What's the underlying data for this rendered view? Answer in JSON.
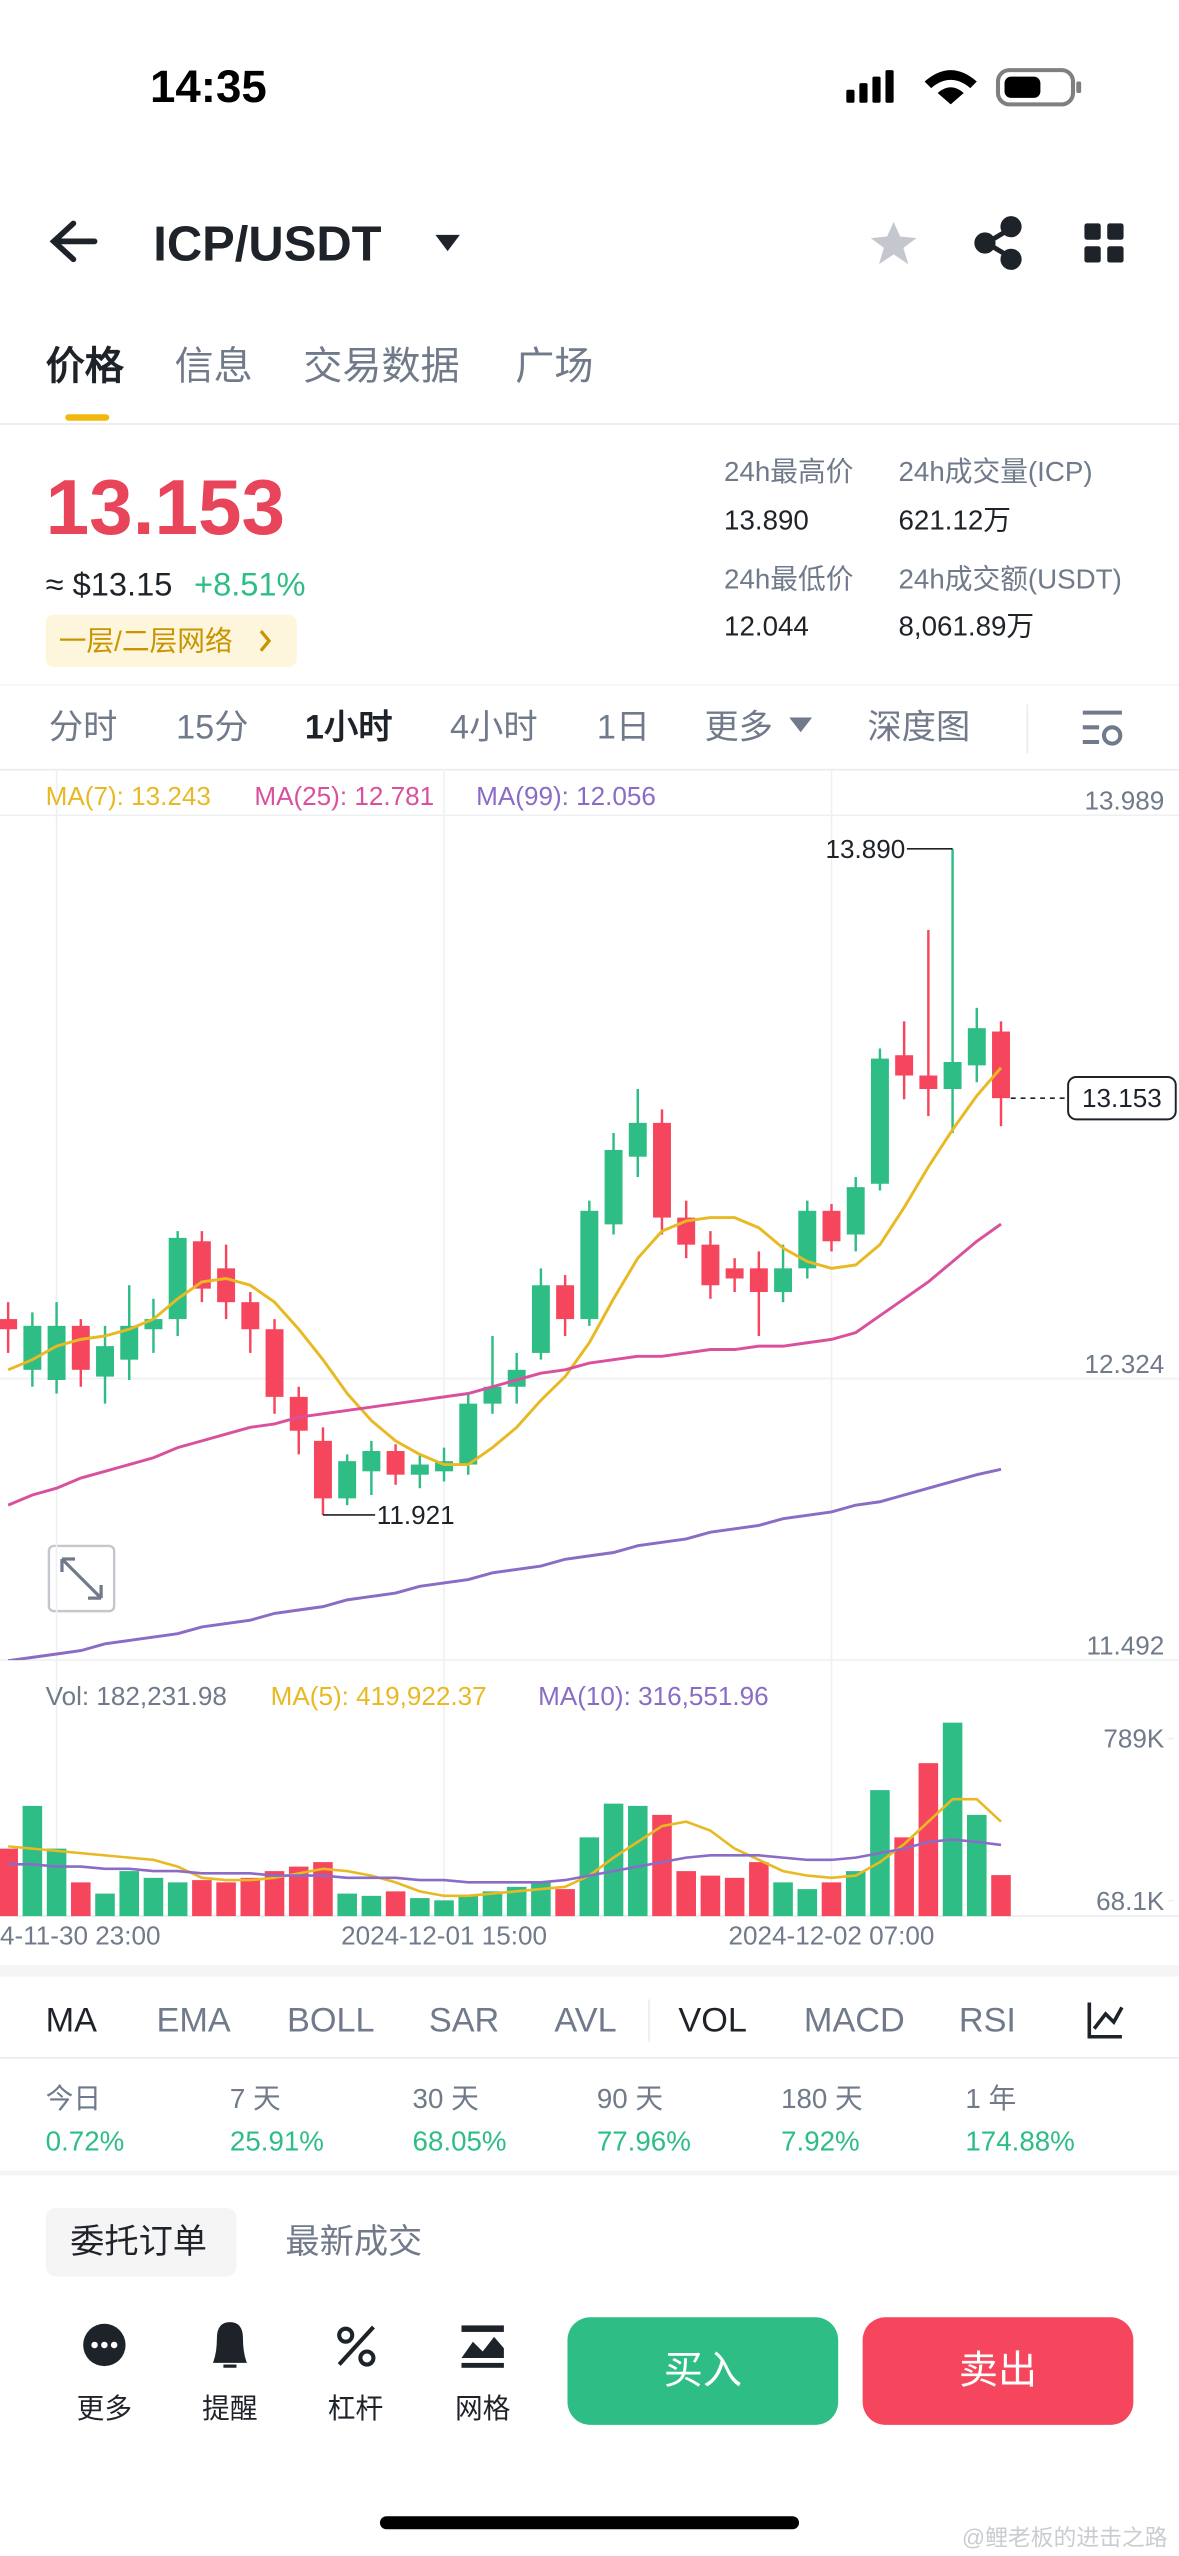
{
  "status_bar": {
    "time": "14:35"
  },
  "header": {
    "pair": "ICP/USDT"
  },
  "tabs": [
    "价格",
    "信息",
    "交易数据",
    "广场"
  ],
  "price": {
    "last": "13.153",
    "usd": "≈ $13.15",
    "change": "+8.51%",
    "network": "一层/二层网络"
  },
  "stats": [
    {
      "label": "24h最高价",
      "value": "13.890"
    },
    {
      "label": "24h成交量(ICP)",
      "value": "621.12万"
    },
    {
      "label": "24h最低价",
      "value": "12.044"
    },
    {
      "label": "24h成交额(USDT)",
      "value": "8,061.89万"
    }
  ],
  "intervals": [
    "分时",
    "15分",
    "1小时",
    "4小时",
    "1日",
    "更多",
    "深度图"
  ],
  "chart_data": [
    {
      "type": "candlestick",
      "up_color": "#2ebd85",
      "down_color": "#f6465d",
      "high_label": "13.890",
      "low_label": "11.921",
      "ylim": [
        11.492,
        13.989
      ],
      "yticks": [
        13.989,
        12.324,
        11.492
      ],
      "grid": true,
      "open": [
        12.5,
        12.35,
        12.32,
        12.48,
        12.33,
        12.38,
        12.47,
        12.5,
        12.73,
        12.65,
        12.55,
        12.47,
        12.27,
        12.14,
        11.97,
        12.05,
        12.11,
        12.04,
        12.05,
        12.07,
        12.25,
        12.3,
        12.4,
        12.6,
        12.5,
        12.78,
        12.98,
        13.08,
        12.8,
        12.72,
        12.65,
        12.65,
        12.58,
        12.65,
        12.82,
        12.75,
        12.9,
        13.28,
        13.22,
        13.18,
        13.25,
        13.35
      ],
      "high": [
        12.55,
        12.52,
        12.55,
        12.5,
        12.48,
        12.6,
        12.56,
        12.76,
        12.76,
        12.72,
        12.58,
        12.5,
        12.3,
        12.18,
        12.1,
        12.14,
        12.13,
        12.1,
        12.12,
        12.28,
        12.45,
        12.4,
        12.65,
        12.63,
        12.85,
        13.05,
        13.18,
        13.12,
        12.85,
        12.76,
        12.68,
        12.7,
        12.72,
        12.85,
        12.84,
        12.92,
        13.3,
        13.38,
        13.65,
        13.89,
        13.42,
        13.38
      ],
      "low": [
        12.4,
        12.3,
        12.28,
        12.3,
        12.25,
        12.32,
        12.4,
        12.45,
        12.55,
        12.5,
        12.4,
        12.22,
        12.1,
        11.921,
        11.95,
        11.98,
        12.01,
        12.0,
        12.02,
        12.04,
        12.22,
        12.25,
        12.38,
        12.45,
        12.48,
        12.75,
        12.92,
        12.75,
        12.68,
        12.56,
        12.58,
        12.45,
        12.55,
        12.62,
        12.7,
        12.7,
        12.88,
        13.15,
        13.1,
        13.05,
        13.2,
        13.07
      ],
      "close": [
        12.47,
        12.48,
        12.48,
        12.35,
        12.42,
        12.48,
        12.5,
        12.74,
        12.59,
        12.55,
        12.47,
        12.27,
        12.17,
        11.97,
        12.08,
        12.11,
        12.04,
        12.07,
        12.08,
        12.25,
        12.3,
        12.35,
        12.6,
        12.5,
        12.82,
        13.0,
        13.08,
        12.8,
        12.72,
        12.6,
        12.62,
        12.58,
        12.65,
        12.82,
        12.73,
        12.89,
        13.27,
        13.22,
        13.18,
        13.26,
        13.36,
        13.153
      ],
      "series": [
        {
          "name": "MA(7): 13.243",
          "color": "#e8b923",
          "values": [
            12.35,
            12.38,
            12.42,
            12.44,
            12.45,
            12.47,
            12.5,
            12.56,
            12.61,
            12.62,
            12.6,
            12.55,
            12.47,
            12.38,
            12.28,
            12.2,
            12.14,
            12.1,
            12.07,
            12.07,
            12.12,
            12.18,
            12.26,
            12.33,
            12.43,
            12.56,
            12.68,
            12.76,
            12.79,
            12.8,
            12.8,
            12.77,
            12.71,
            12.67,
            12.65,
            12.66,
            12.72,
            12.83,
            12.95,
            13.06,
            13.16,
            13.243
          ]
        },
        {
          "name": "MA(25): 12.781",
          "color": "#d9519d",
          "values": [
            11.95,
            11.98,
            12.0,
            12.03,
            12.05,
            12.07,
            12.09,
            12.12,
            12.14,
            12.16,
            12.18,
            12.19,
            12.21,
            12.22,
            12.23,
            12.24,
            12.25,
            12.26,
            12.27,
            12.28,
            12.3,
            12.32,
            12.34,
            12.35,
            12.37,
            12.38,
            12.39,
            12.39,
            12.4,
            12.41,
            12.41,
            12.42,
            12.42,
            12.43,
            12.44,
            12.46,
            12.51,
            12.56,
            12.61,
            12.67,
            12.73,
            12.781
          ]
        },
        {
          "name": "MA(99): 12.056",
          "color": "#8a6cc6",
          "values": [
            11.49,
            11.5,
            11.51,
            11.52,
            11.54,
            11.55,
            11.56,
            11.57,
            11.59,
            11.6,
            11.61,
            11.63,
            11.64,
            11.65,
            11.67,
            11.68,
            11.69,
            11.71,
            11.72,
            11.73,
            11.75,
            11.76,
            11.77,
            11.79,
            11.8,
            11.81,
            11.83,
            11.84,
            11.85,
            11.87,
            11.88,
            11.89,
            11.91,
            11.92,
            11.93,
            11.95,
            11.96,
            11.98,
            12.0,
            12.02,
            12.04,
            12.056
          ]
        }
      ]
    },
    {
      "type": "bar",
      "label": "Vol: 182,231.98",
      "categories": [
        null,
        null,
        "4-11-30 23:00",
        null,
        null,
        null,
        null,
        null,
        null,
        null,
        null,
        null,
        null,
        null,
        null,
        null,
        null,
        null,
        "2024-12-01 15:00",
        null,
        null,
        null,
        null,
        null,
        null,
        null,
        null,
        null,
        null,
        null,
        null,
        null,
        null,
        null,
        "2024-12-02 07:00",
        null,
        null,
        null,
        null,
        null,
        null,
        null
      ],
      "values": [
        300000,
        490000,
        300000,
        150000,
        100000,
        200000,
        170000,
        150000,
        160000,
        150000,
        170000,
        200000,
        220000,
        240000,
        100000,
        90000,
        110000,
        80000,
        70000,
        90000,
        110000,
        130000,
        150000,
        120000,
        350000,
        500000,
        490000,
        450000,
        200000,
        180000,
        170000,
        240000,
        150000,
        120000,
        150000,
        200000,
        560000,
        350000,
        680000,
        860000,
        450000,
        182231.98
      ],
      "ylim": [
        0,
        870000
      ],
      "yticks": [
        {
          "value": 789000,
          "label": "789K"
        },
        {
          "value": 68100,
          "label": "68.1K"
        }
      ],
      "series": [
        {
          "name": "MA(5): 419,922.37",
          "color": "#e8b923",
          "values": [
            310000,
            300000,
            290000,
            280000,
            270000,
            260000,
            250000,
            220000,
            170000,
            160000,
            160000,
            170000,
            190000,
            210000,
            200000,
            180000,
            150000,
            110000,
            90000,
            90000,
            100000,
            110000,
            120000,
            130000,
            180000,
            260000,
            330000,
            400000,
            420000,
            380000,
            300000,
            250000,
            200000,
            180000,
            170000,
            180000,
            240000,
            320000,
            420000,
            520000,
            520000,
            419922.37
          ]
        },
        {
          "name": "MA(10): 316,551.96",
          "color": "#8a6cc6",
          "values": [
            230000,
            230000,
            220000,
            220000,
            210000,
            210000,
            200000,
            200000,
            190000,
            190000,
            190000,
            180000,
            180000,
            180000,
            170000,
            170000,
            170000,
            160000,
            160000,
            150000,
            150000,
            150000,
            150000,
            160000,
            180000,
            200000,
            220000,
            240000,
            260000,
            270000,
            270000,
            270000,
            260000,
            250000,
            250000,
            260000,
            280000,
            300000,
            330000,
            340000,
            330000,
            316551.96
          ]
        }
      ]
    }
  ],
  "indicators": [
    "MA",
    "EMA",
    "BOLL",
    "SAR",
    "AVL",
    "VOL",
    "MACD",
    "RSI"
  ],
  "performance": [
    {
      "period": "今日",
      "change": "0.72%"
    },
    {
      "period": "7 天",
      "change": "25.91%"
    },
    {
      "period": "30 天",
      "change": "68.05%"
    },
    {
      "period": "90 天",
      "change": "77.96%"
    },
    {
      "period": "180 天",
      "change": "7.92%"
    },
    {
      "period": "1 年",
      "change": "174.88%"
    }
  ],
  "order_tabs": [
    "委托订单",
    "最新成交"
  ],
  "toolbar": [
    "更多",
    "提醒",
    "杠杆",
    "网格"
  ],
  "actions": [
    "买入",
    "卖出"
  ],
  "watermark": "@鲤老板的进击之路"
}
